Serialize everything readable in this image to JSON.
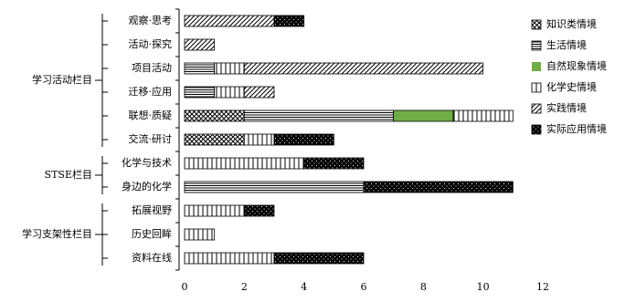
{
  "chart_data": {
    "type": "stacked-bar-horizontal",
    "groups": [
      {
        "name": "学习活动栏目",
        "categories": [
          "观察·思考",
          "活动·探究",
          "项目活动",
          "迁移·应用",
          "联想·质疑",
          "交流·研讨"
        ]
      },
      {
        "name": "STSE栏目",
        "categories": [
          "化学与技术",
          "身边的化学"
        ]
      },
      {
        "name": "学习支架性栏目",
        "categories": [
          "拓展视野",
          "历史回眸",
          "资料在线"
        ]
      }
    ],
    "series": [
      {
        "name": "知识类情境",
        "color": "#000000",
        "pattern": "cross",
        "values": [
          0,
          0,
          0,
          0,
          2,
          2,
          0,
          0,
          0,
          0,
          0
        ]
      },
      {
        "name": "生活情境",
        "color": "#000000",
        "pattern": "horizontal",
        "values": [
          0,
          0,
          1,
          1,
          5,
          0,
          0,
          6,
          0,
          0,
          0
        ]
      },
      {
        "name": "自然现象情境",
        "color": "#70ad47",
        "pattern": "solid",
        "values": [
          0,
          0,
          0,
          0,
          2,
          0,
          0,
          0,
          0,
          0,
          0
        ]
      },
      {
        "name": "化学史情境",
        "color": "#000000",
        "pattern": "vertical",
        "values": [
          0,
          0,
          1,
          1,
          2,
          1,
          4,
          0,
          2,
          1,
          3
        ]
      },
      {
        "name": "实践情境",
        "color": "#000000",
        "pattern": "diagonal",
        "values": [
          3,
          1,
          8,
          1,
          0,
          0,
          0,
          0,
          0,
          0,
          0
        ]
      },
      {
        "name": "实际应用情境",
        "color": "#000000",
        "pattern": "dots",
        "values": [
          1,
          0,
          0,
          0,
          0,
          2,
          2,
          5,
          1,
          0,
          3
        ]
      }
    ],
    "xlim": [
      0,
      12
    ],
    "xticks": [
      0,
      2,
      4,
      6,
      8,
      10,
      12
    ],
    "legend": "right"
  }
}
